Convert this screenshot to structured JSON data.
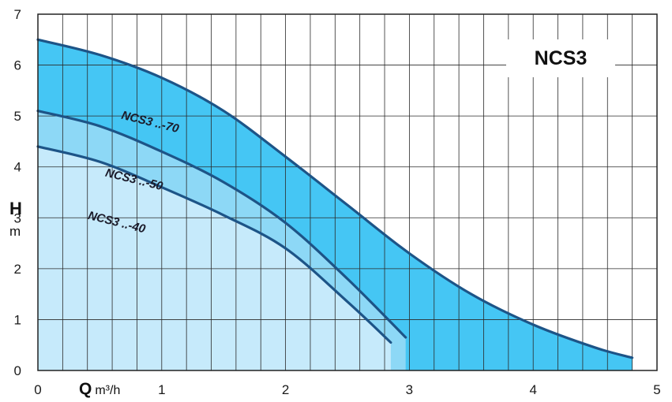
{
  "chart_data": {
    "type": "area",
    "title": "NCS3",
    "xlabel_symbol": "Q",
    "xlabel_unit": "m³/h",
    "ylabel_symbol": "H",
    "ylabel_unit": "m",
    "xlim": [
      0,
      5
    ],
    "ylim": [
      0,
      7
    ],
    "x_ticks": [
      "0",
      "1",
      "2",
      "3",
      "4",
      "5"
    ],
    "y_ticks": [
      "0",
      "1",
      "2",
      "3",
      "4",
      "5",
      "6",
      "7"
    ],
    "grid": true,
    "series": [
      {
        "name": "NCS3 ..-70",
        "fill": "#45c6f4",
        "x": [
          0,
          0.5,
          1.0,
          1.5,
          2.0,
          2.5,
          3.0,
          3.5,
          4.0,
          4.5,
          4.8
        ],
        "y": [
          6.5,
          6.2,
          5.75,
          5.1,
          4.2,
          3.25,
          2.3,
          1.5,
          0.9,
          0.45,
          0.25
        ]
      },
      {
        "name": "NCS3 ..-50",
        "fill": "#8dd8f6",
        "x": [
          0,
          0.5,
          1.0,
          1.5,
          2.0,
          2.5,
          2.97
        ],
        "y": [
          5.1,
          4.8,
          4.3,
          3.7,
          2.9,
          1.8,
          0.65
        ]
      },
      {
        "name": "NCS3 ..-40",
        "fill": "#c6eafb",
        "x": [
          0,
          0.5,
          1.0,
          1.5,
          2.0,
          2.5,
          2.85
        ],
        "y": [
          4.4,
          4.1,
          3.6,
          3.05,
          2.4,
          1.35,
          0.55
        ]
      }
    ],
    "line_color": "#1d5487"
  }
}
